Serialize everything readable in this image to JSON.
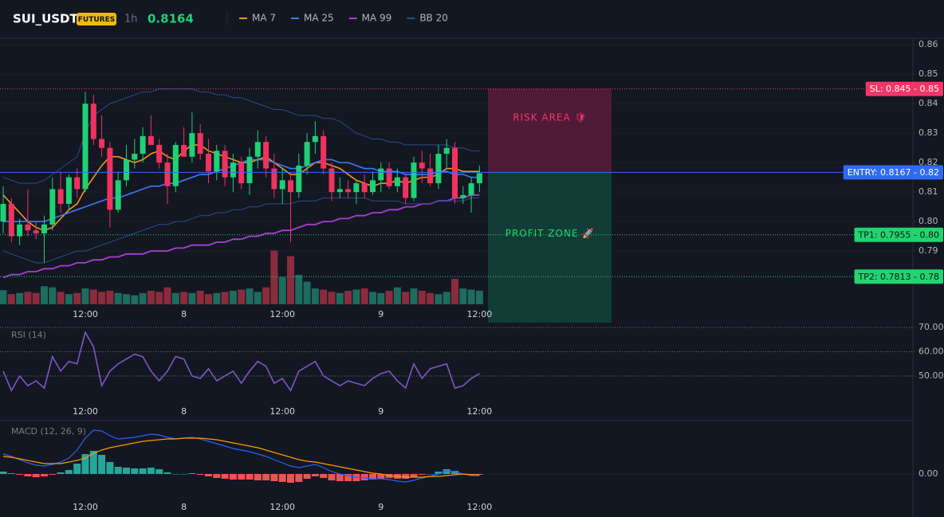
{
  "header": {
    "symbol": "SUI_USDT",
    "badge": "FUTURES",
    "interval": "1h",
    "price": "0.8164"
  },
  "chart_data": [
    {
      "type": "candlestick",
      "categories": [
        null,
        null,
        null,
        null,
        null,
        null,
        null,
        null,
        null,
        null,
        "12:00",
        null,
        null,
        null,
        null,
        null,
        null,
        null,
        null,
        null,
        null,
        null,
        "8",
        null,
        null,
        null,
        null,
        null,
        null,
        null,
        null,
        null,
        null,
        null,
        "12:00",
        null,
        null,
        null,
        null,
        null,
        null,
        null,
        null,
        null,
        null,
        null,
        "9",
        null,
        null,
        null,
        null,
        null,
        null,
        null,
        null,
        null,
        null,
        null,
        "12:00"
      ],
      "open": [
        0.8,
        0.806,
        0.795,
        0.799,
        0.797,
        0.796,
        0.799,
        0.811,
        0.806,
        0.815,
        0.811,
        0.84,
        0.828,
        0.825,
        0.804,
        0.814,
        0.821,
        0.823,
        0.829,
        0.826,
        0.82,
        0.812,
        0.826,
        0.822,
        0.83,
        0.823,
        0.817,
        0.824,
        0.815,
        0.82,
        0.813,
        0.822,
        0.827,
        0.818,
        0.811,
        0.814,
        0.81,
        0.819,
        0.827,
        0.829,
        0.818,
        0.81,
        0.811,
        0.81,
        0.813,
        0.81,
        0.814,
        0.818,
        0.812,
        0.815,
        0.808,
        0.82,
        0.818,
        0.813,
        0.823,
        0.825,
        0.808,
        0.809,
        0.813
      ],
      "high": [
        0.812,
        0.808,
        0.801,
        0.811,
        0.8,
        0.802,
        0.815,
        0.817,
        0.816,
        0.818,
        0.844,
        0.843,
        0.836,
        0.827,
        0.817,
        0.826,
        0.828,
        0.832,
        0.836,
        0.828,
        0.823,
        0.827,
        0.832,
        0.837,
        0.833,
        0.828,
        0.826,
        0.826,
        0.823,
        0.822,
        0.825,
        0.831,
        0.829,
        0.823,
        0.818,
        0.816,
        0.823,
        0.83,
        0.834,
        0.831,
        0.82,
        0.815,
        0.814,
        0.814,
        0.816,
        0.817,
        0.82,
        0.82,
        0.818,
        0.816,
        0.822,
        0.824,
        0.823,
        0.826,
        0.828,
        0.827,
        0.812,
        0.815,
        0.819
      ],
      "low": [
        0.796,
        0.793,
        0.792,
        0.795,
        0.794,
        0.786,
        0.797,
        0.803,
        0.804,
        0.808,
        0.81,
        0.826,
        0.822,
        0.798,
        0.803,
        0.812,
        0.818,
        0.82,
        0.826,
        0.818,
        0.806,
        0.81,
        0.822,
        0.82,
        0.821,
        0.813,
        0.814,
        0.812,
        0.81,
        0.811,
        0.809,
        0.818,
        0.815,
        0.808,
        0.806,
        0.793,
        0.808,
        0.816,
        0.823,
        0.816,
        0.807,
        0.808,
        0.808,
        0.806,
        0.808,
        0.809,
        0.81,
        0.811,
        0.81,
        0.806,
        0.807,
        0.813,
        0.812,
        0.811,
        0.818,
        0.806,
        0.806,
        0.803,
        0.81
      ],
      "close": [
        0.806,
        0.795,
        0.799,
        0.797,
        0.796,
        0.799,
        0.811,
        0.806,
        0.815,
        0.811,
        0.84,
        0.828,
        0.825,
        0.804,
        0.814,
        0.821,
        0.823,
        0.829,
        0.826,
        0.82,
        0.812,
        0.826,
        0.822,
        0.83,
        0.823,
        0.817,
        0.824,
        0.815,
        0.82,
        0.813,
        0.822,
        0.827,
        0.818,
        0.811,
        0.814,
        0.81,
        0.819,
        0.827,
        0.829,
        0.818,
        0.81,
        0.811,
        0.81,
        0.813,
        0.81,
        0.814,
        0.818,
        0.812,
        0.815,
        0.808,
        0.82,
        0.818,
        0.813,
        0.823,
        0.825,
        0.808,
        0.809,
        0.813,
        0.8164
      ],
      "up_color": "#1fd175",
      "down_color": "#f0325f",
      "overlays": [
        {
          "name": "MA 7",
          "color": "#f7931a",
          "values": [
            0.809,
            0.806,
            0.803,
            0.8,
            0.798,
            0.797,
            0.798,
            0.801,
            0.804,
            0.806,
            0.811,
            0.815,
            0.819,
            0.822,
            0.822,
            0.821,
            0.82,
            0.821,
            0.823,
            0.824,
            0.822,
            0.821,
            0.824,
            0.826,
            0.826,
            0.824,
            0.823,
            0.822,
            0.821,
            0.82,
            0.82,
            0.821,
            0.822,
            0.82,
            0.818,
            0.816,
            0.816,
            0.818,
            0.82,
            0.82,
            0.819,
            0.818,
            0.816,
            0.814,
            0.813,
            0.812,
            0.813,
            0.813,
            0.814,
            0.813,
            0.814,
            0.815,
            0.815,
            0.816,
            0.818,
            0.818,
            0.817,
            0.817,
            0.817
          ]
        },
        {
          "name": "MA 25",
          "color": "#3b7bf6",
          "values": [
            0.8,
            0.8,
            0.8,
            0.8,
            0.8,
            0.8,
            0.801,
            0.802,
            0.803,
            0.804,
            0.805,
            0.806,
            0.807,
            0.808,
            0.808,
            0.809,
            0.81,
            0.811,
            0.812,
            0.812,
            0.813,
            0.813,
            0.814,
            0.815,
            0.816,
            0.816,
            0.817,
            0.818,
            0.819,
            0.82,
            0.821,
            0.821,
            0.821,
            0.82,
            0.819,
            0.818,
            0.818,
            0.819,
            0.82,
            0.821,
            0.821,
            0.82,
            0.82,
            0.819,
            0.818,
            0.818,
            0.817,
            0.817,
            0.817,
            0.816,
            0.816,
            0.816,
            0.816,
            0.817,
            0.817,
            0.816,
            0.816,
            0.815,
            0.815
          ]
        },
        {
          "name": "MA 99",
          "color": "#a83fd1",
          "values": [
            0.781,
            0.782,
            0.782,
            0.783,
            0.783,
            0.784,
            0.784,
            0.785,
            0.785,
            0.786,
            0.786,
            0.787,
            0.787,
            0.788,
            0.788,
            0.789,
            0.789,
            0.789,
            0.79,
            0.79,
            0.79,
            0.791,
            0.791,
            0.792,
            0.792,
            0.792,
            0.793,
            0.793,
            0.794,
            0.794,
            0.795,
            0.795,
            0.796,
            0.796,
            0.797,
            0.797,
            0.798,
            0.799,
            0.799,
            0.8,
            0.8,
            0.801,
            0.801,
            0.802,
            0.802,
            0.803,
            0.803,
            0.804,
            0.804,
            0.805,
            0.805,
            0.806,
            0.806,
            0.807,
            0.807,
            0.808,
            0.808,
            0.809,
            0.809
          ]
        },
        {
          "name": "BB 20",
          "color": "#2a4b8d",
          "upper": [
            0.815,
            0.814,
            0.813,
            0.813,
            0.813,
            0.814,
            0.816,
            0.818,
            0.82,
            0.822,
            0.83,
            0.836,
            0.838,
            0.84,
            0.841,
            0.842,
            0.843,
            0.844,
            0.844,
            0.845,
            0.845,
            0.845,
            0.845,
            0.845,
            0.844,
            0.844,
            0.843,
            0.843,
            0.842,
            0.842,
            0.841,
            0.84,
            0.839,
            0.838,
            0.838,
            0.837,
            0.836,
            0.836,
            0.836,
            0.835,
            0.835,
            0.834,
            0.832,
            0.83,
            0.829,
            0.828,
            0.828,
            0.827,
            0.827,
            0.826,
            0.826,
            0.826,
            0.826,
            0.826,
            0.826,
            0.825,
            0.825,
            0.824,
            0.824
          ],
          "lower": [
            0.79,
            0.789,
            0.788,
            0.787,
            0.786,
            0.786,
            0.787,
            0.788,
            0.789,
            0.79,
            0.79,
            0.791,
            0.792,
            0.793,
            0.794,
            0.795,
            0.796,
            0.797,
            0.798,
            0.799,
            0.799,
            0.8,
            0.8,
            0.801,
            0.802,
            0.802,
            0.803,
            0.803,
            0.804,
            0.804,
            0.805,
            0.805,
            0.806,
            0.806,
            0.806,
            0.806,
            0.807,
            0.807,
            0.807,
            0.808,
            0.808,
            0.808,
            0.808,
            0.808,
            0.808,
            0.807,
            0.807,
            0.807,
            0.807,
            0.806,
            0.806,
            0.806,
            0.806,
            0.807,
            0.807,
            0.807,
            0.807,
            0.808,
            0.808
          ]
        }
      ],
      "volume": {
        "ylim": [
          0,
          100
        ],
        "up_color": "#1e6b5f",
        "down_color": "#8a2c3c",
        "values": [
          25,
          18,
          20,
          22,
          20,
          32,
          30,
          22,
          18,
          20,
          28,
          26,
          22,
          24,
          20,
          18,
          16,
          20,
          24,
          22,
          30,
          20,
          22,
          20,
          24,
          18,
          20,
          22,
          24,
          26,
          28,
          22,
          30,
          95,
          48,
          85,
          52,
          40,
          28,
          26,
          22,
          20,
          24,
          26,
          28,
          22,
          20,
          24,
          30,
          22,
          28,
          24,
          20,
          18,
          22,
          45,
          28,
          26,
          24
        ]
      },
      "ylim": [
        0.7657,
        0.8622
      ],
      "yticks": [
        0.86,
        0.85,
        0.84,
        0.83,
        0.82,
        0.81,
        {
          "value": 0.8,
          "label": "0.80"
        },
        0.79
      ],
      "levels": [
        {
          "label": "SL: 0.845 - 0.85",
          "value": 0.845,
          "color": "#f23668",
          "text_color": "#ffffff",
          "style": "dotted"
        },
        {
          "label": "ENTRY: 0.8167 - 0.82",
          "value": 0.8167,
          "color": "#2f6bf0",
          "text_color": "#ffffff",
          "style": "solid"
        },
        {
          "label": "TP1: 0.7955 - 0.80",
          "value": 0.7955,
          "color": "#22d36f",
          "text_color": "#0b1a12",
          "style": "dotted"
        },
        {
          "label": "TP2: 0.7813 - 0.78",
          "value": 0.7813,
          "color": "#22d36f",
          "text_color": "#0b1a12",
          "style": "dotted"
        }
      ],
      "zones": [
        {
          "label": "RISK AREA 🛡",
          "from": 0.845,
          "to": 0.8167,
          "fill": "#5c1b3a",
          "text_color": "#f23668"
        },
        {
          "label": "PROFIT ZONE 🚀",
          "from": 0.8167,
          "to": 0.7657,
          "fill": "#12443a",
          "text_color": "#22d36f"
        }
      ]
    },
    {
      "type": "line",
      "label": "RSI (14)",
      "color": "#7e57c2",
      "values": [
        52,
        44,
        50,
        46,
        48,
        45,
        58,
        52,
        56,
        55,
        68,
        62,
        46,
        52,
        55,
        57,
        59,
        58,
        52,
        48,
        52,
        58,
        57,
        50,
        49,
        53,
        48,
        50,
        52,
        47,
        52,
        56,
        54,
        47,
        49,
        44,
        52,
        54,
        56,
        50,
        48,
        46,
        48,
        47,
        46,
        49,
        51,
        52,
        48,
        45,
        55,
        49,
        53,
        54,
        55,
        45,
        46,
        49,
        51
      ],
      "ylim": [
        31.6,
        72
      ],
      "yticks": [
        {
          "value": 70,
          "label": "70.00"
        },
        {
          "value": 60,
          "label": "60.00"
        },
        {
          "value": 50,
          "label": "50.00"
        }
      ]
    },
    {
      "type": "macd",
      "label": "MACD (12, 26, 9)",
      "macd": {
        "color": "#2962ff",
        "values": [
          0.0025,
          0.0022,
          0.0018,
          0.0014,
          0.0011,
          0.001,
          0.0012,
          0.0015,
          0.002,
          0.003,
          0.0045,
          0.0055,
          0.0054,
          0.0048,
          0.0044,
          0.0045,
          0.0046,
          0.0048,
          0.005,
          0.0049,
          0.0046,
          0.0044,
          0.0045,
          0.0046,
          0.0044,
          0.0041,
          0.0038,
          0.0035,
          0.0032,
          0.003,
          0.0028,
          0.0025,
          0.0022,
          0.0018,
          0.0014,
          0.001,
          0.0008,
          0.001,
          0.0012,
          0.0008,
          0.0003,
          0.0,
          -0.0002,
          -0.0004,
          -0.0005,
          -0.0006,
          -0.0006,
          -0.0007,
          -0.0009,
          -0.001,
          -0.0008,
          -0.0005,
          -0.0003,
          0.0,
          0.0004,
          0.0003,
          0.0,
          -0.0002,
          -0.0002
        ]
      },
      "signal": {
        "color": "#ff9800",
        "values": [
          0.0022,
          0.0021,
          0.0019,
          0.0017,
          0.0015,
          0.0013,
          0.0013,
          0.0013,
          0.0015,
          0.0017,
          0.002,
          0.0026,
          0.003,
          0.0033,
          0.0035,
          0.0037,
          0.0039,
          0.0041,
          0.0042,
          0.0043,
          0.0044,
          0.0044,
          0.0045,
          0.0045,
          0.0045,
          0.0044,
          0.0043,
          0.0041,
          0.0039,
          0.0037,
          0.0035,
          0.0033,
          0.003,
          0.0027,
          0.0024,
          0.0021,
          0.0018,
          0.0016,
          0.0015,
          0.0013,
          0.0011,
          0.0009,
          0.0007,
          0.0005,
          0.0003,
          0.0001,
          0.0,
          -0.0002,
          -0.0003,
          -0.0004,
          -0.0004,
          -0.0004,
          -0.0003,
          -0.0003,
          -0.0002,
          -0.0001,
          0.0,
          -0.0001,
          -0.0001
        ]
      },
      "histogram": {
        "up_color": "#26a69a",
        "down_color": "#ef5350",
        "values": [
          0.0003,
          0.0001,
          -0.0001,
          -0.0003,
          -0.0004,
          -0.0003,
          -0.0001,
          0.0002,
          0.0005,
          0.0013,
          0.0025,
          0.0029,
          0.0024,
          0.0015,
          0.0009,
          0.0008,
          0.0007,
          0.0007,
          0.0008,
          0.0006,
          0.0002,
          0.0,
          0.0,
          0.0001,
          -0.0001,
          -0.0003,
          -0.0005,
          -0.0006,
          -0.0007,
          -0.0007,
          -0.0007,
          -0.0008,
          -0.0008,
          -0.0009,
          -0.001,
          -0.0011,
          -0.001,
          -0.0006,
          -0.0003,
          -0.0005,
          -0.0008,
          -0.0009,
          -0.0009,
          -0.0009,
          -0.0008,
          -0.0007,
          -0.0006,
          -0.0005,
          -0.0006,
          -0.0006,
          -0.0004,
          -0.0001,
          0.0,
          0.0003,
          0.0006,
          0.0004,
          0.0,
          -0.0001,
          -0.0001
        ]
      },
      "ylim": [
        -0.0033,
        0.0067
      ],
      "yticks": [
        {
          "value": 0,
          "label": "0.00"
        }
      ]
    }
  ]
}
